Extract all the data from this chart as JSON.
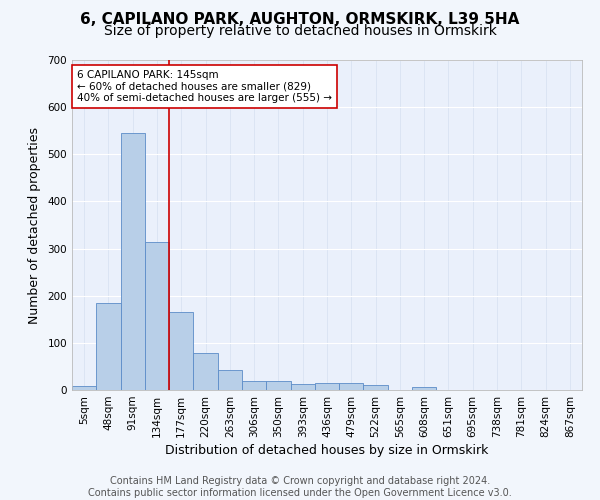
{
  "title": "6, CAPILANO PARK, AUGHTON, ORMSKIRK, L39 5HA",
  "subtitle": "Size of property relative to detached houses in Ormskirk",
  "xlabel": "Distribution of detached houses by size in Ormskirk",
  "ylabel": "Number of detached properties",
  "bar_labels": [
    "5sqm",
    "48sqm",
    "91sqm",
    "134sqm",
    "177sqm",
    "220sqm",
    "263sqm",
    "306sqm",
    "350sqm",
    "393sqm",
    "436sqm",
    "479sqm",
    "522sqm",
    "565sqm",
    "608sqm",
    "651sqm",
    "695sqm",
    "738sqm",
    "781sqm",
    "824sqm",
    "867sqm"
  ],
  "bar_values": [
    8,
    185,
    545,
    315,
    165,
    78,
    42,
    20,
    20,
    13,
    15,
    15,
    10,
    0,
    7,
    0,
    0,
    0,
    0,
    0,
    0
  ],
  "bar_color": "#b8cfe8",
  "bar_edge_color": "#5b8cc8",
  "background_color": "#eaf0fb",
  "fig_background_color": "#f2f6fc",
  "grid_color": "#ffffff",
  "vline_x": 3.5,
  "vline_color": "#cc0000",
  "annotation_text": "6 CAPILANO PARK: 145sqm\n← 60% of detached houses are smaller (829)\n40% of semi-detached houses are larger (555) →",
  "annotation_box_color": "#ffffff",
  "annotation_box_edge": "#cc0000",
  "ylim": [
    0,
    700
  ],
  "yticks": [
    0,
    100,
    200,
    300,
    400,
    500,
    600,
    700
  ],
  "footer": "Contains HM Land Registry data © Crown copyright and database right 2024.\nContains public sector information licensed under the Open Government Licence v3.0.",
  "title_fontsize": 11,
  "subtitle_fontsize": 10,
  "axis_label_fontsize": 9,
  "tick_fontsize": 7.5,
  "footer_fontsize": 7
}
